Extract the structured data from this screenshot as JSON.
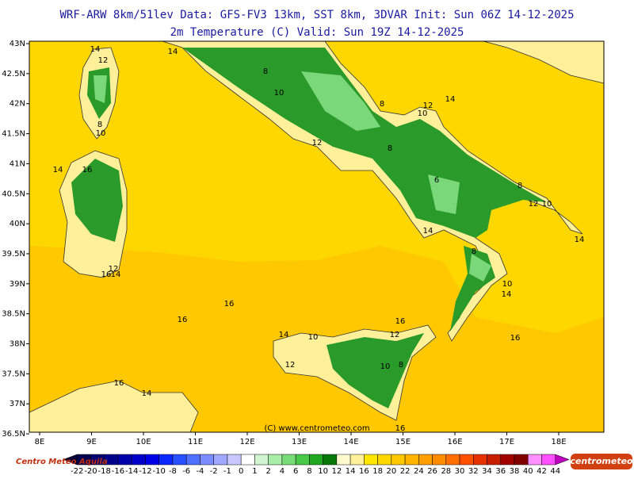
{
  "header": {
    "title": "WRF-ARW 8km/51lev  Data: GFS-FV3 13km, SST 8km, 3DVAR  Init: Sun 06Z 14-12-2025",
    "subtitle": "2m Temperature (C)  Valid: Sun 19Z 14-12-2025"
  },
  "map": {
    "lat_labels": [
      "43N",
      "42.5N",
      "42N",
      "41.5N",
      "41N",
      "40.5N",
      "40N",
      "39.5N",
      "39N",
      "38.5N",
      "38N",
      "37.5N",
      "37N",
      "36.5N"
    ],
    "lon_labels": [
      "8E",
      "9E",
      "10E",
      "11E",
      "12E",
      "13E",
      "14E",
      "15E",
      "16E",
      "17E",
      "18E"
    ],
    "contour_labels": [
      14,
      14,
      12,
      8,
      10,
      14,
      16,
      12,
      16,
      14,
      10,
      8,
      12,
      8,
      12,
      14,
      10,
      8,
      6,
      8,
      12,
      10,
      14,
      14,
      8,
      10,
      14,
      16,
      16,
      16,
      16,
      14,
      10,
      12,
      12,
      10,
      8,
      16,
      14,
      16
    ],
    "copyright": "(C) www.centrometeo.com"
  },
  "colorbar": {
    "labels": [
      -22,
      -20,
      -18,
      -16,
      -14,
      -12,
      -10,
      -8,
      -6,
      -4,
      -2,
      -1,
      0,
      1,
      2,
      4,
      6,
      8,
      10,
      12,
      14,
      16,
      18,
      20,
      22,
      24,
      26,
      28,
      30,
      32,
      34,
      36,
      38,
      40,
      42,
      44
    ],
    "colors": [
      "#000033",
      "#000050",
      "#000070",
      "#00008b",
      "#0000a8",
      "#0000c8",
      "#0000e6",
      "#0a28ff",
      "#2850ff",
      "#5070ff",
      "#7a8cff",
      "#a0a8ff",
      "#c8c8ff",
      "#ffffff",
      "#d0f5d0",
      "#a8eea8",
      "#78dd78",
      "#48c848",
      "#20a820",
      "#087808",
      "#fffacd",
      "#fff099",
      "#ffe600",
      "#ffd700",
      "#ffc800",
      "#ffb400",
      "#ffa000",
      "#ff8c00",
      "#ff6e00",
      "#ff5000",
      "#e63200",
      "#c81e00",
      "#a00000",
      "#800000",
      "#ff90ff",
      "#ff50ff",
      "#c000c0"
    ]
  },
  "logos": {
    "left": "Centro Meteo Aquila",
    "right": "centrometeo"
  }
}
